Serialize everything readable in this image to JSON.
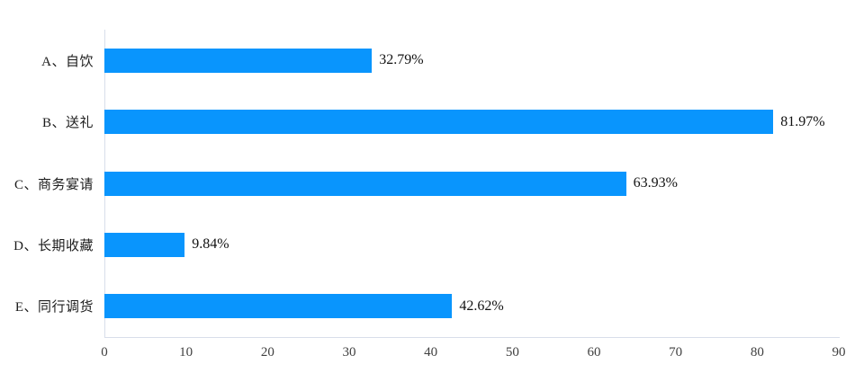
{
  "chart_data": {
    "type": "bar",
    "orientation": "horizontal",
    "title": "",
    "xlabel": "",
    "ylabel": "",
    "categories": [
      "A、自饮",
      "B、送礼",
      "C、商务宴请",
      "D、长期收藏",
      "E、同行调货"
    ],
    "values": [
      32.79,
      81.97,
      63.93,
      9.84,
      42.62
    ],
    "value_labels": [
      "32.79%",
      "81.97%",
      "63.93%",
      "9.84%",
      "42.62%"
    ],
    "xlim": [
      0,
      90
    ],
    "x_ticks": [
      "0",
      "10",
      "20",
      "30",
      "40",
      "50",
      "60",
      "70",
      "80",
      "90"
    ],
    "grid": false,
    "legend": false,
    "colors": {
      "bar": "#0995fd",
      "axis_line": "#d8deea",
      "tick_text": "#404040",
      "category_text": "#1c1c1c",
      "value_text": "#111111",
      "background": "#ffffff"
    }
  }
}
